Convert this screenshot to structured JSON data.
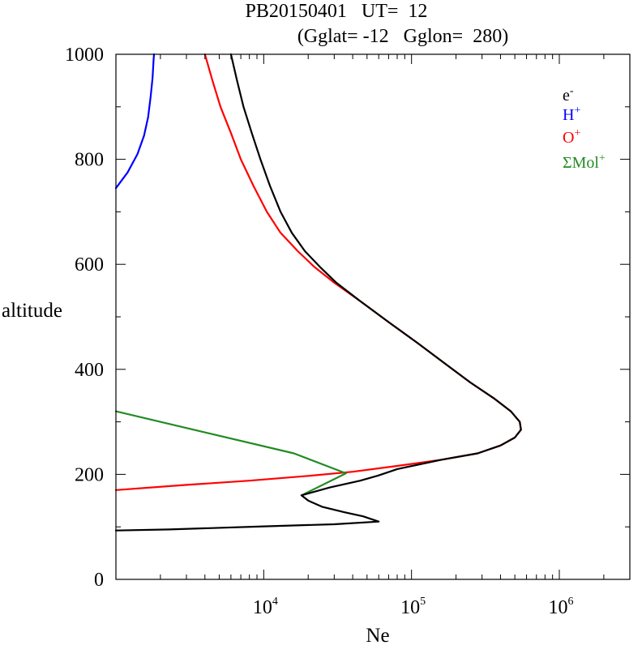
{
  "chart_data": {
    "type": "line",
    "title_line1": "PB20150401   UT=  12",
    "title_line2": "(Gglat= -12   Gglon=  280)",
    "xlabel": "Ne",
    "ylabel": "altitude",
    "x_scale": "log",
    "xlim": [
      1000,
      3000000
    ],
    "ylim": [
      0,
      1000
    ],
    "x_ticks": [
      {
        "value": 10000,
        "base": "10",
        "exp": "4"
      },
      {
        "value": 100000,
        "base": "10",
        "exp": "5"
      },
      {
        "value": 1000000,
        "base": "10",
        "exp": "6"
      }
    ],
    "y_ticks": [
      0,
      200,
      400,
      600,
      800,
      1000
    ],
    "legend_position": "top-right",
    "legend": [
      {
        "base": "e",
        "sup": "-",
        "color": "#000000"
      },
      {
        "base": "H",
        "sup": "+",
        "color": "#0000ff"
      },
      {
        "base": "O",
        "sup": "+",
        "color": "#ff0000"
      },
      {
        "base": "ΣMol",
        "sup": "+",
        "color": "#228b22"
      }
    ],
    "series": [
      {
        "key": "h",
        "color": "#0000ff",
        "points": [
          [
            1000,
            745
          ],
          [
            1200,
            775
          ],
          [
            1400,
            810
          ],
          [
            1550,
            845
          ],
          [
            1650,
            880
          ],
          [
            1720,
            920
          ],
          [
            1770,
            955
          ],
          [
            1800,
            990
          ],
          [
            1810,
            1000
          ]
        ]
      },
      {
        "key": "o",
        "color": "#ff0000",
        "points": [
          [
            1000,
            170
          ],
          [
            3000,
            180
          ],
          [
            8000,
            188
          ],
          [
            20000,
            197
          ],
          [
            40000,
            205
          ],
          [
            80000,
            216
          ],
          [
            160000,
            228
          ],
          [
            280000,
            240
          ],
          [
            400000,
            255
          ],
          [
            500000,
            270
          ],
          [
            550000,
            285
          ],
          [
            540000,
            300
          ],
          [
            470000,
            320
          ],
          [
            360000,
            345
          ],
          [
            250000,
            375
          ],
          [
            170000,
            410
          ],
          [
            110000,
            450
          ],
          [
            70000,
            490
          ],
          [
            45000,
            530
          ],
          [
            30000,
            565
          ],
          [
            22000,
            595
          ],
          [
            17000,
            625
          ],
          [
            13000,
            660
          ],
          [
            10500,
            700
          ],
          [
            8500,
            750
          ],
          [
            7000,
            800
          ],
          [
            6000,
            850
          ],
          [
            5100,
            900
          ],
          [
            4500,
            950
          ],
          [
            4000,
            1000
          ]
        ]
      },
      {
        "key": "mol",
        "color": "#228b22",
        "points": [
          [
            1000,
            320
          ],
          [
            16000,
            240
          ],
          [
            36000,
            202
          ],
          [
            18000,
            160
          ]
        ]
      },
      {
        "key": "e",
        "color": "#000000",
        "points": [
          [
            1000,
            93
          ],
          [
            2300,
            95
          ],
          [
            10000,
            101
          ],
          [
            30000,
            105
          ],
          [
            60000,
            110
          ],
          [
            47000,
            120
          ],
          [
            35000,
            128
          ],
          [
            25000,
            138
          ],
          [
            20000,
            150
          ],
          [
            18000,
            160
          ],
          [
            28000,
            175
          ],
          [
            45000,
            188
          ],
          [
            60000,
            198
          ],
          [
            80000,
            210
          ],
          [
            160000,
            228
          ],
          [
            280000,
            240
          ],
          [
            400000,
            255
          ],
          [
            500000,
            270
          ],
          [
            550000,
            285
          ],
          [
            540000,
            300
          ],
          [
            470000,
            320
          ],
          [
            360000,
            345
          ],
          [
            250000,
            375
          ],
          [
            170000,
            410
          ],
          [
            110000,
            450
          ],
          [
            70000,
            490
          ],
          [
            45000,
            530
          ],
          [
            31000,
            565
          ],
          [
            24000,
            595
          ],
          [
            19000,
            625
          ],
          [
            15500,
            660
          ],
          [
            13000,
            700
          ],
          [
            11000,
            750
          ],
          [
            9500,
            800
          ],
          [
            8300,
            850
          ],
          [
            7300,
            900
          ],
          [
            6600,
            950
          ],
          [
            6000,
            1000
          ]
        ]
      }
    ]
  }
}
